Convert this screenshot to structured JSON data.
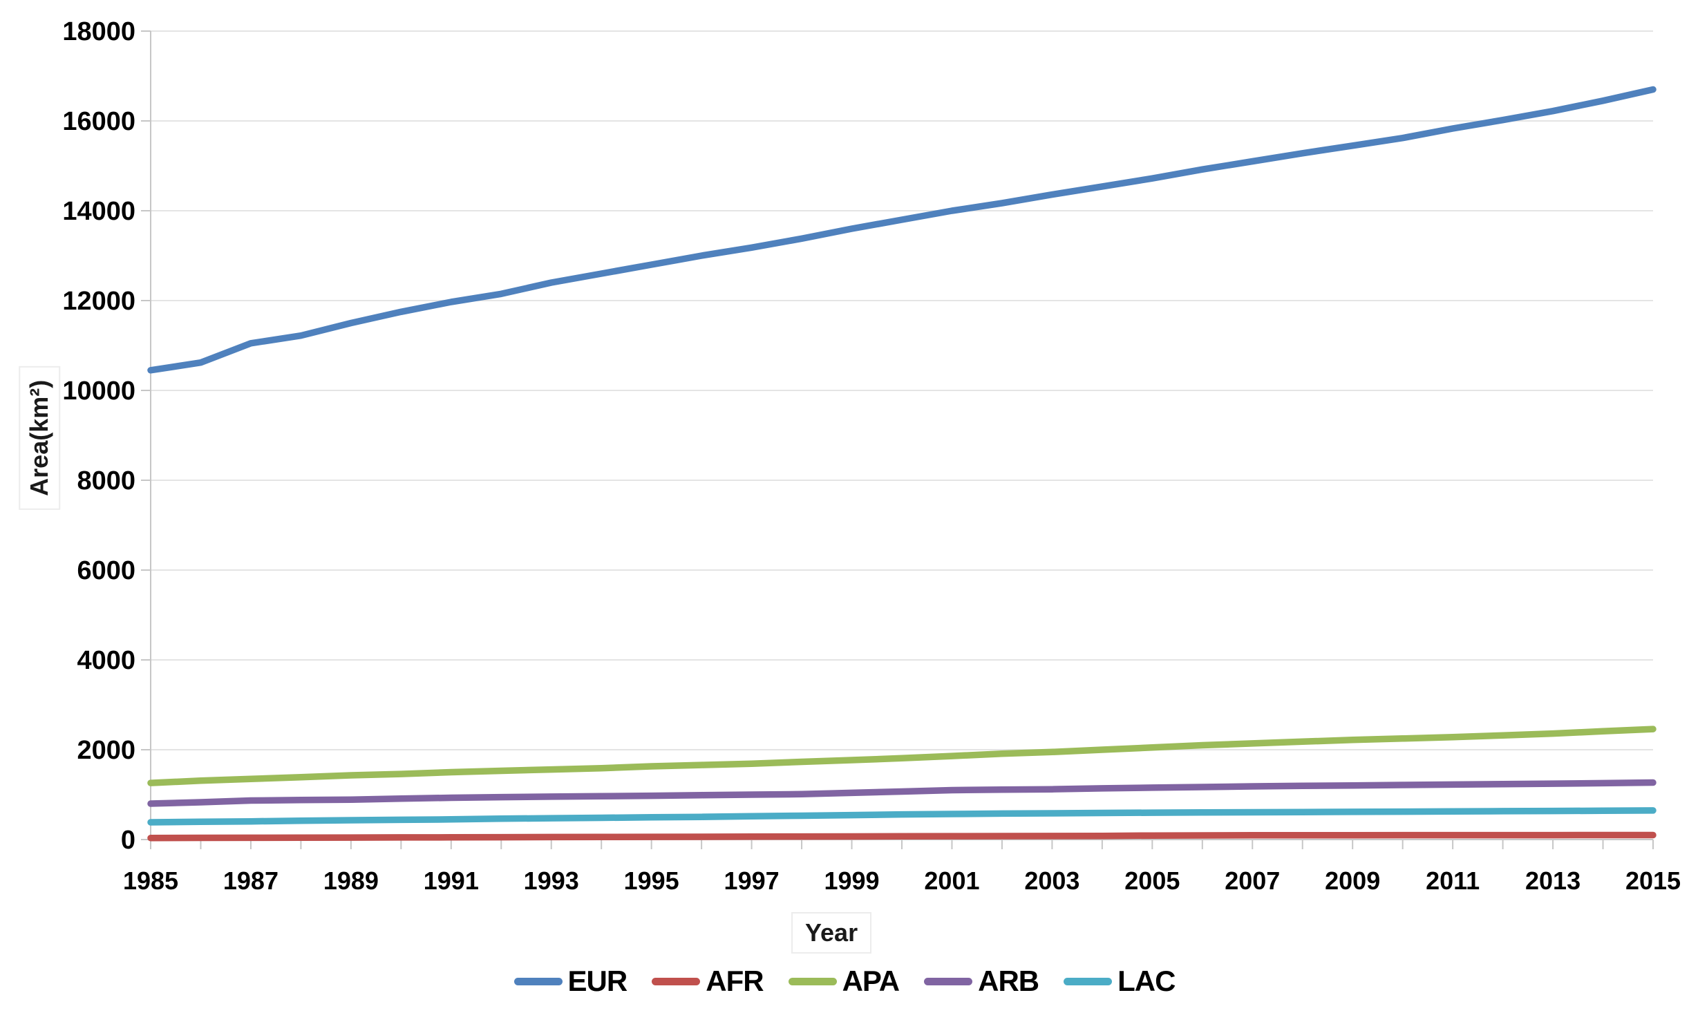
{
  "chart_data": {
    "type": "line",
    "title": "",
    "xlabel": "Year",
    "ylabel": "Area(km²)",
    "x": [
      1985,
      1986,
      1987,
      1988,
      1989,
      1990,
      1991,
      1992,
      1993,
      1994,
      1995,
      1996,
      1997,
      1998,
      1999,
      2000,
      2001,
      2002,
      2003,
      2004,
      2005,
      2006,
      2007,
      2008,
      2009,
      2010,
      2011,
      2012,
      2013,
      2014,
      2015
    ],
    "x_tick_labels": [
      "1985",
      "1987",
      "1989",
      "1991",
      "1993",
      "1995",
      "1997",
      "1999",
      "2001",
      "2003",
      "2005",
      "2007",
      "2009",
      "2011",
      "2013",
      "2015"
    ],
    "ylim": [
      0,
      18000
    ],
    "y_ticks": [
      0,
      2000,
      4000,
      6000,
      8000,
      10000,
      12000,
      14000,
      16000,
      18000
    ],
    "grid": "horizontal",
    "legend_position": "bottom",
    "series": [
      {
        "name": "EUR",
        "color": "#4F81BD",
        "values": [
          10450,
          10620,
          11050,
          11220,
          11500,
          11750,
          11970,
          12150,
          12400,
          12600,
          12800,
          13000,
          13180,
          13380,
          13600,
          13800,
          14000,
          14170,
          14360,
          14540,
          14720,
          14920,
          15100,
          15280,
          15450,
          15620,
          15830,
          16020,
          16220,
          16450,
          16700
        ]
      },
      {
        "name": "AFR",
        "color": "#C0504D",
        "values": [
          35,
          38,
          40,
          42,
          45,
          47,
          50,
          52,
          55,
          57,
          60,
          62,
          65,
          67,
          70,
          72,
          75,
          77,
          79,
          82,
          90,
          93,
          95,
          96,
          97,
          98,
          98,
          99,
          99,
          100,
          100
        ]
      },
      {
        "name": "APA",
        "color": "#9BBB59",
        "values": [
          1260,
          1310,
          1350,
          1390,
          1430,
          1460,
          1500,
          1530,
          1560,
          1590,
          1630,
          1660,
          1690,
          1730,
          1770,
          1810,
          1860,
          1910,
          1950,
          2000,
          2050,
          2100,
          2140,
          2180,
          2220,
          2250,
          2280,
          2320,
          2360,
          2410,
          2460
        ]
      },
      {
        "name": "ARB",
        "color": "#8064A2",
        "values": [
          800,
          830,
          870,
          880,
          890,
          910,
          930,
          945,
          955,
          965,
          975,
          990,
          1000,
          1010,
          1040,
          1070,
          1100,
          1110,
          1120,
          1140,
          1155,
          1170,
          1185,
          1195,
          1205,
          1215,
          1225,
          1235,
          1245,
          1255,
          1270
        ]
      },
      {
        "name": "LAC",
        "color": "#4BACC6",
        "values": [
          385,
          395,
          405,
          420,
          430,
          440,
          450,
          465,
          475,
          485,
          495,
          505,
          520,
          530,
          545,
          560,
          570,
          578,
          585,
          592,
          598,
          603,
          608,
          613,
          617,
          622,
          627,
          632,
          637,
          642,
          648
        ]
      }
    ]
  },
  "axes": {
    "x_title": "Year",
    "y_title": "Area(km²)"
  },
  "legend": {
    "items": [
      {
        "label": "EUR",
        "color": "#4F81BD"
      },
      {
        "label": "AFR",
        "color": "#C0504D"
      },
      {
        "label": "APA",
        "color": "#9BBB59"
      },
      {
        "label": "ARB",
        "color": "#8064A2"
      },
      {
        "label": "LAC",
        "color": "#4BACC6"
      }
    ]
  },
  "style_colors": {
    "gridline": "#E4E4E4",
    "axis_line": "#C6C6C6",
    "tick": "#C6C6C6"
  }
}
